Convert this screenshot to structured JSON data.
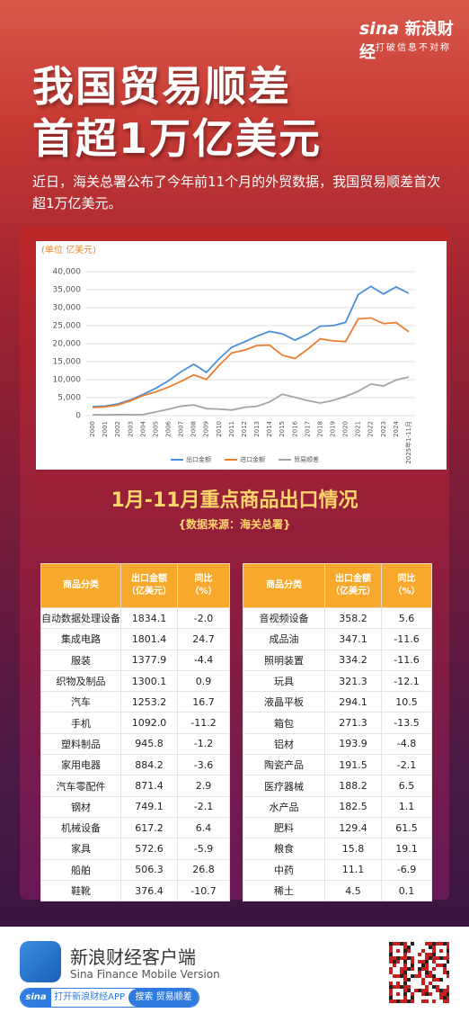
{
  "header": {
    "logo": "sina",
    "brand": "新浪财经",
    "slogan": "打破信息不对称",
    "title_lines": [
      "我国贸易顺差",
      "首超1万亿美元"
    ],
    "intro": "近日，海关总署公布了今年前11个月的外贸数据，我国贸易顺差首次超1万亿美元。"
  },
  "chart_data": {
    "type": "line",
    "ylabel": "(单位 亿美元)",
    "categories": [
      "2000",
      "2001",
      "2002",
      "2003",
      "2004",
      "2005",
      "2006",
      "2007",
      "2008",
      "2009",
      "2010",
      "2011",
      "2012",
      "2013",
      "2014",
      "2015",
      "2016",
      "2017",
      "2018",
      "2019",
      "2020",
      "2021",
      "2022",
      "2023",
      "2024",
      "2025年1-11月"
    ],
    "series": [
      {
        "name": "出口金额",
        "color": "#4a90d9",
        "values": [
          2492,
          2661,
          3256,
          4382,
          5933,
          7620,
          9690,
          12200,
          14307,
          12016,
          15778,
          18984,
          20487,
          22090,
          23423,
          22735,
          20976,
          22633,
          24867,
          24995,
          25900,
          33640,
          35936,
          33800,
          35772,
          34000
        ]
      },
      {
        "name": "进口金额",
        "color": "#ed7d31",
        "values": [
          2251,
          2436,
          2952,
          4128,
          5614,
          6600,
          7915,
          9561,
          11326,
          10059,
          13962,
          17435,
          18184,
          19500,
          19592,
          16796,
          15879,
          18438,
          21357,
          20784,
          20556,
          26875,
          27160,
          25568,
          25851,
          23300
        ]
      },
      {
        "name": "贸易顺差",
        "color": "#a5a5a5",
        "values": [
          241,
          225,
          304,
          255,
          320,
          1020,
          1775,
          2639,
          2981,
          1957,
          1815,
          1549,
          2303,
          2590,
          3831,
          5939,
          5097,
          4195,
          3510,
          4211,
          5350,
          6764,
          8776,
          8232,
          9921,
          10758
        ]
      }
    ],
    "ylim": [
      0,
      40000
    ],
    "yticks": [
      0,
      {
        "value": 5000,
        "label": "5,000"
      },
      {
        "value": 10000,
        "label": "10,000"
      },
      {
        "value": 15000,
        "label": "15,000"
      },
      {
        "value": 20000,
        "label": "20,000"
      },
      {
        "value": 25000,
        "label": "25,000"
      },
      {
        "value": 30000,
        "label": "30,000"
      },
      {
        "value": 35000,
        "label": "35,000"
      },
      {
        "value": 40000,
        "label": "40,000"
      }
    ],
    "grid": true,
    "legend": "bottom"
  },
  "section": {
    "title": "1月-11月重点商品出口情况",
    "source": "{数据来源：海关总署}"
  },
  "tables": [
    {
      "headers": [
        [
          "商品分类"
        ],
        [
          "出口金额",
          "（亿美元）"
        ],
        [
          "同比",
          "（%）"
        ]
      ],
      "rows": [
        [
          "自动数据处理设备",
          "1834.1",
          "-2.0"
        ],
        [
          "集成电路",
          "1801.4",
          "24.7"
        ],
        [
          "服装",
          "1377.9",
          "-4.4"
        ],
        [
          "织物及制品",
          "1300.1",
          "0.9"
        ],
        [
          "汽车",
          "1253.2",
          "16.7"
        ],
        [
          "手机",
          "1092.0",
          "-11.2"
        ],
        [
          "塑料制品",
          "945.8",
          "-1.2"
        ],
        [
          "家用电器",
          "884.2",
          "-3.6"
        ],
        [
          "汽车零配件",
          "871.4",
          "2.9"
        ],
        [
          "钢材",
          "749.1",
          "-2.1"
        ],
        [
          "机械设备",
          "617.2",
          "6.4"
        ],
        [
          "家具",
          "572.6",
          "-5.9"
        ],
        [
          "船舶",
          "506.3",
          "26.8"
        ],
        [
          "鞋靴",
          "376.4",
          "-10.7"
        ]
      ]
    },
    {
      "headers": [
        [
          "商品分类"
        ],
        [
          "出口金额",
          "（亿美元）"
        ],
        [
          "同比",
          "（%）"
        ]
      ],
      "rows": [
        [
          "音视频设备",
          "358.2",
          "5.6"
        ],
        [
          "成品油",
          "347.1",
          "-11.6"
        ],
        [
          "照明装置",
          "334.2",
          "-11.6"
        ],
        [
          "玩具",
          "321.3",
          "-12.1"
        ],
        [
          "液晶平板",
          "294.1",
          "10.5"
        ],
        [
          "箱包",
          "271.3",
          "-13.5"
        ],
        [
          "铝材",
          "193.9",
          "-4.8"
        ],
        [
          "陶瓷产品",
          "191.5",
          "-2.1"
        ],
        [
          "医疗器械",
          "188.2",
          "6.5"
        ],
        [
          "水产品",
          "182.5",
          "1.1"
        ],
        [
          "肥料",
          "129.4",
          "61.5"
        ],
        [
          "粮食",
          "15.8",
          "19.1"
        ],
        [
          "中药",
          "11.1",
          "-6.9"
        ],
        [
          "稀土",
          "4.5",
          "0.1"
        ]
      ]
    }
  ],
  "footer": {
    "app_name": "新浪财经客户端",
    "app_sub": "Sina Finance Mobile Version",
    "logo": "sina",
    "open_app": "打开新浪财经APP",
    "search": "搜索",
    "keyword": "贸易顺差"
  }
}
